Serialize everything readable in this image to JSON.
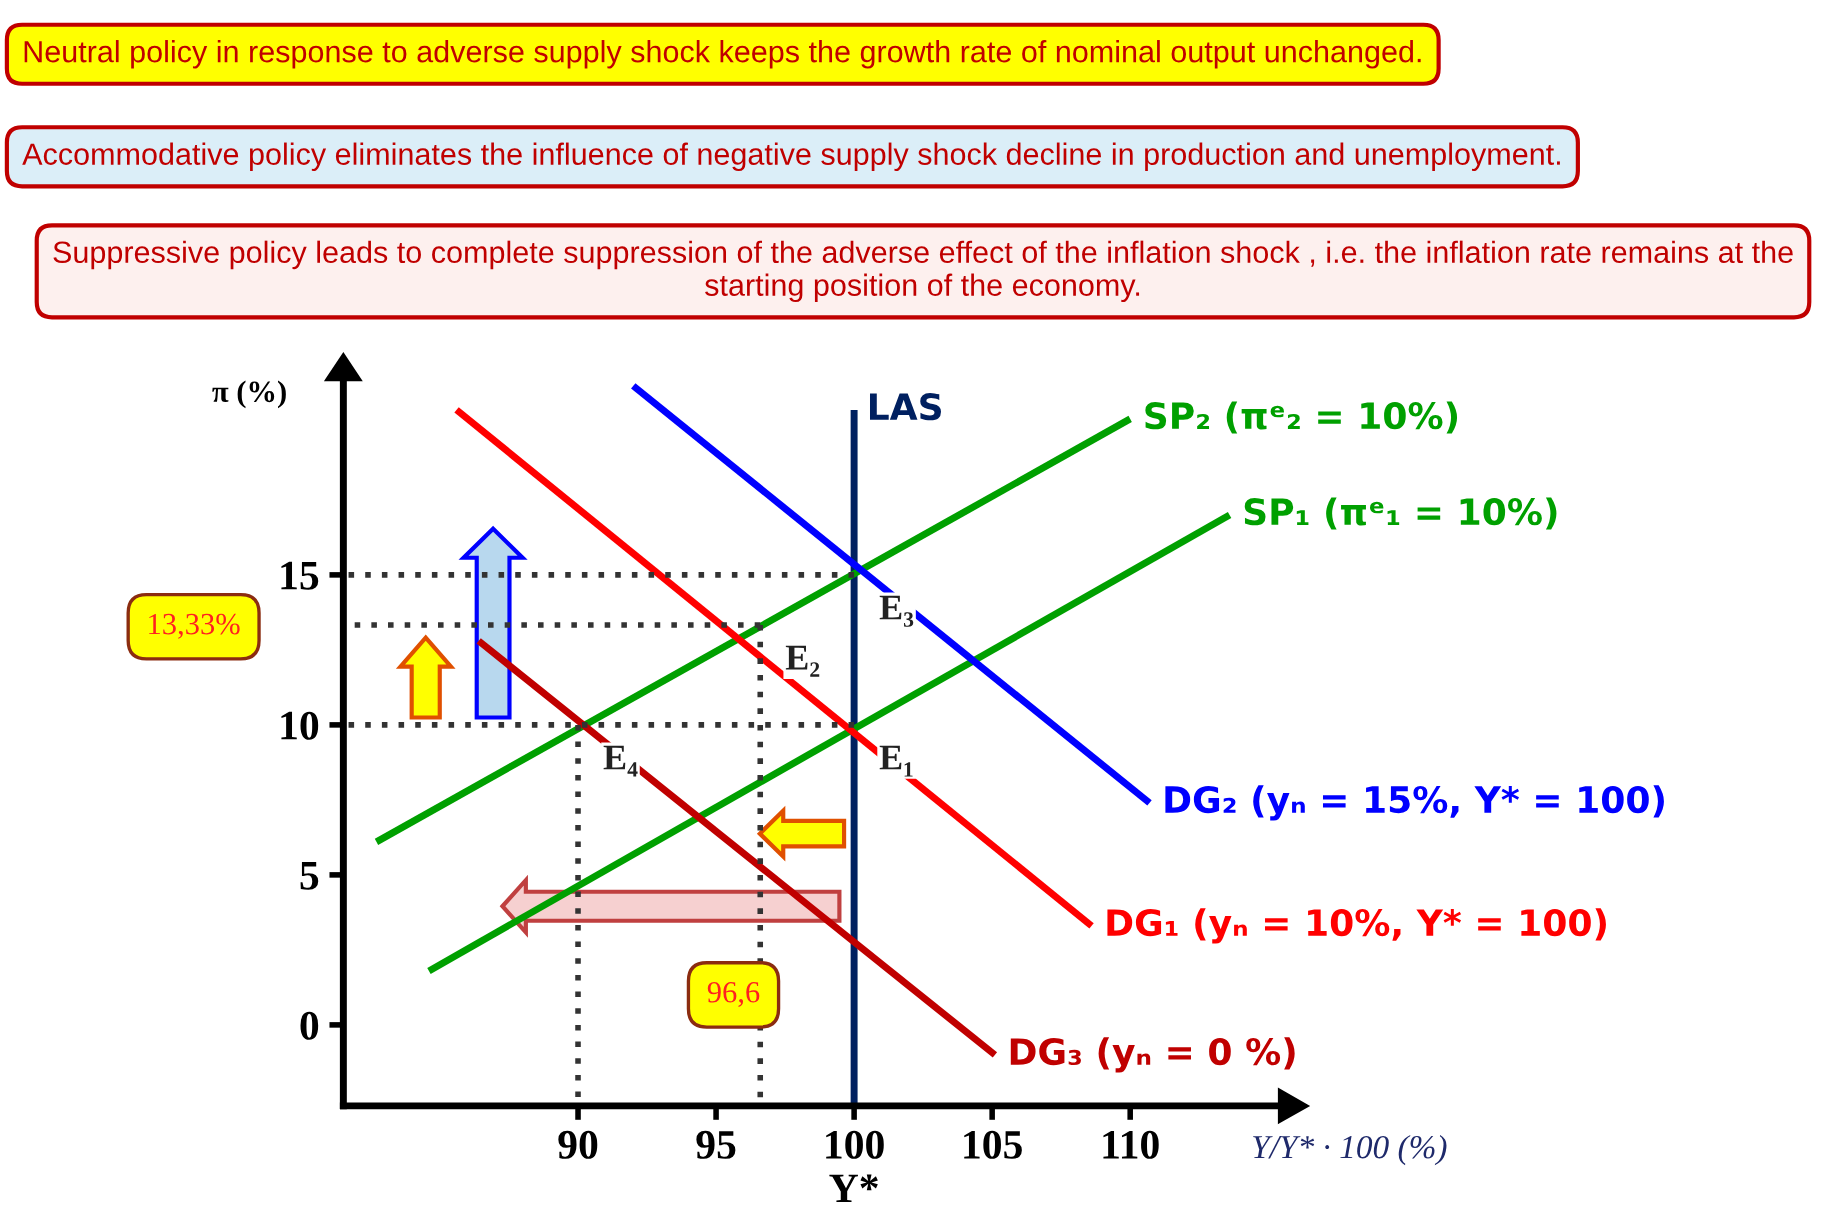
{
  "chart_data": {
    "type": "line",
    "xlabel": "Y/Y* · 100 (%)",
    "ylabel": "π (%)",
    "xlim": [
      81.5,
      115.4
    ],
    "ylim": [
      -2.7,
      21.5
    ],
    "xticks": [
      90,
      95,
      {
        "value": 100,
        "label": "100\nY*"
      },
      105,
      110
    ],
    "yticks": [
      0,
      5,
      10,
      15
    ],
    "grid": false,
    "line_style": "solid",
    "series": [
      {
        "name": "LAS",
        "color": "#002060",
        "x": [
          100,
          100
        ],
        "values": [
          -2.7,
          20.5
        ]
      },
      {
        "name": "SP₂ (πᵉ₂ = 10%)",
        "color": "#00a000",
        "x": [
          82.7,
          110.0
        ],
        "values": [
          6.1,
          20.2
        ]
      },
      {
        "name": "SP₁ (πᵉ₁ = 10%)",
        "color": "#00a000",
        "x": [
          84.6,
          113.6
        ],
        "values": [
          1.8,
          17.0
        ]
      },
      {
        "name": "DG₂ (yₙ = 15%, Y* = 100)",
        "color": "#0000ff",
        "x": [
          92.0,
          110.7
        ],
        "values": [
          21.3,
          7.4
        ]
      },
      {
        "name": "DG₁ (yₙ = 10%, Y* = 100)",
        "color": "#ff0000",
        "x": [
          85.6,
          108.6
        ],
        "values": [
          20.5,
          3.3
        ]
      },
      {
        "name": "DG₃ (yₙ = 0 %)",
        "color": "#c00000",
        "x": [
          86.4,
          105.1
        ],
        "values": [
          12.8,
          -1.0
        ]
      },
      {
        "color": "#333333",
        "line_style": "dotted",
        "x": [
          81.5,
          100
        ],
        "values": [
          15,
          15
        ]
      },
      {
        "color": "#333333",
        "line_style": "dotted",
        "x": [
          81.5,
          96.6
        ],
        "values": [
          13.33,
          13.33
        ]
      },
      {
        "color": "#333333",
        "line_style": "dotted",
        "x": [
          81.5,
          100
        ],
        "values": [
          10,
          10
        ]
      },
      {
        "color": "#333333",
        "line_style": "dotted",
        "x": [
          90,
          90
        ],
        "values": [
          -2.7,
          10
        ]
      },
      {
        "color": "#333333",
        "line_style": "dotted",
        "x": [
          96.6,
          96.6
        ],
        "values": [
          -2.7,
          13.33
        ]
      }
    ],
    "annotations": [
      "Neutral policy in response to adverse supply shock keeps the growth rate of nominal output unchanged.",
      "Accommodative policy eliminates the influence of negative supply shock decline in production and unemployment.",
      "Suppressive policy leads to complete suppression of the adverse effect of the inflation shock , i.e. the inflation rate remains at the starting position of the economy.",
      {
        "text": "E₁",
        "x": 100,
        "y": 10
      },
      {
        "text": "E₂",
        "x": 96.6,
        "y": 13.33
      },
      {
        "text": "E₃",
        "x": 100,
        "y": 15
      },
      {
        "text": "E₄",
        "x": 90,
        "y": 10
      },
      "13,33%",
      {
        "text": "96,6",
        "x": 96.6,
        "y": 1
      }
    ]
  }
}
